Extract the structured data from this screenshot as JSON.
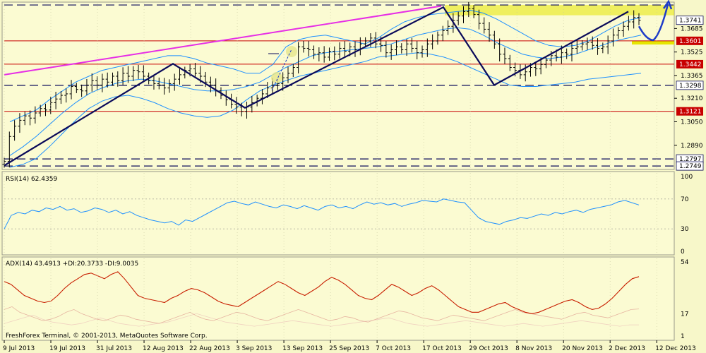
{
  "palette": {
    "background": "#ffffcc",
    "panel_bg": "#fbfbd2",
    "grid": "#c8c8a0",
    "price_bars": "#000000",
    "bollinger": "#1e90ff",
    "trendline_dark": "#0a0a5a",
    "trendline_magenta": "#e62ee6",
    "red_level": "#c80000",
    "yellow_zone": "#e6e600",
    "forecast_arrow": "#1e3cc8",
    "rsi_line": "#1e90ff",
    "adx_line": "#c81e00",
    "di_plus": "#e6b4a0",
    "di_minus": "#f0d2c0"
  },
  "chart_data": [
    {
      "type": "line",
      "panel": "price",
      "yaxis_ticks": [
        "1.3685",
        "1.3525",
        "1.3365",
        "1.3210",
        "1.3050",
        "1.2890"
      ],
      "ylim": [
        1.2735,
        1.3855
      ],
      "level_labels": [
        {
          "text": "1.3741",
          "value": 1.3741,
          "style": "current",
          "color": "#000000"
        },
        {
          "text": "1.3601",
          "value": 1.3601,
          "style": "resistance",
          "color": "#c80000"
        },
        {
          "text": "1.3442",
          "value": 1.3442,
          "style": "resistance",
          "color": "#c80000"
        },
        {
          "text": "1.3298",
          "value": 1.3298,
          "style": "dashed",
          "color": "#000000"
        },
        {
          "text": "1.3121",
          "value": 1.3121,
          "style": "resistance",
          "color": "#c80000"
        },
        {
          "text": "1.2797",
          "value": 1.2797,
          "style": "dashed",
          "color": "#000000"
        },
        {
          "text": "1.2749",
          "value": 1.2749,
          "style": "dashed",
          "color": "#000000"
        }
      ],
      "top_dashed_level": 1.3845,
      "closes": [
        1.278,
        1.295,
        1.302,
        1.306,
        1.309,
        1.3075,
        1.311,
        1.314,
        1.313,
        1.318,
        1.3205,
        1.323,
        1.324,
        1.329,
        1.327,
        1.326,
        1.33,
        1.333,
        1.33,
        1.334,
        1.332,
        1.336,
        1.333,
        1.338,
        1.336,
        1.34,
        1.339,
        1.336,
        1.333,
        1.331,
        1.33,
        1.328,
        1.331,
        1.334,
        1.337,
        1.34,
        1.341,
        1.338,
        1.336,
        1.332,
        1.33,
        1.326,
        1.323,
        1.32,
        1.317,
        1.315,
        1.312,
        1.315,
        1.318,
        1.321,
        1.324,
        1.328,
        1.33,
        1.331,
        1.335,
        1.338,
        1.342,
        1.356,
        1.355,
        1.354,
        1.351,
        1.352,
        1.349,
        1.353,
        1.351,
        1.355,
        1.353,
        1.356,
        1.354,
        1.358,
        1.36,
        1.362,
        1.358,
        1.357,
        1.352,
        1.354,
        1.356,
        1.354,
        1.358,
        1.355,
        1.352,
        1.354,
        1.358,
        1.36,
        1.364,
        1.367,
        1.37,
        1.374,
        1.377,
        1.38,
        1.382,
        1.378,
        1.372,
        1.368,
        1.364,
        1.358,
        1.351,
        1.348,
        1.342,
        1.34,
        1.337,
        1.339,
        1.342,
        1.341,
        1.344,
        1.347,
        1.35,
        1.349,
        1.352,
        1.351,
        1.355,
        1.356,
        1.358,
        1.359,
        1.357,
        1.355,
        1.356,
        1.36,
        1.364,
        1.367,
        1.37,
        1.373,
        1.376,
        1.3741
      ],
      "bb_upper": [
        1.305,
        1.309,
        1.313,
        1.32,
        1.326,
        1.332,
        1.336,
        1.34,
        1.342,
        1.344,
        1.346,
        1.348,
        1.35,
        1.35,
        1.348,
        1.345,
        1.343,
        1.341,
        1.338,
        1.338,
        1.344,
        1.356,
        1.361,
        1.363,
        1.364,
        1.362,
        1.36,
        1.358,
        1.362,
        1.368,
        1.373,
        1.376,
        1.378,
        1.379,
        1.38,
        1.381,
        1.379,
        1.375,
        1.37,
        1.365,
        1.36,
        1.357,
        1.356,
        1.357,
        1.36,
        1.365,
        1.37,
        1.374,
        1.376
      ],
      "bb_middle": [
        1.282,
        1.288,
        1.295,
        1.303,
        1.311,
        1.318,
        1.324,
        1.328,
        1.331,
        1.333,
        1.334,
        1.333,
        1.331,
        1.329,
        1.327,
        1.326,
        1.326,
        1.327,
        1.329,
        1.332,
        1.337,
        1.342,
        1.346,
        1.35,
        1.352,
        1.353,
        1.354,
        1.355,
        1.356,
        1.358,
        1.361,
        1.364,
        1.366,
        1.368,
        1.369,
        1.368,
        1.364,
        1.359,
        1.355,
        1.351,
        1.349,
        1.348,
        1.349,
        1.351,
        1.354,
        1.357,
        1.36,
        1.362,
        1.364
      ],
      "bb_lower": [
        1.274,
        1.276,
        1.28,
        1.288,
        1.297,
        1.306,
        1.314,
        1.319,
        1.322,
        1.323,
        1.321,
        1.318,
        1.314,
        1.311,
        1.309,
        1.308,
        1.309,
        1.313,
        1.32,
        1.326,
        1.33,
        1.333,
        1.336,
        1.338,
        1.34,
        1.342,
        1.344,
        1.346,
        1.349,
        1.35,
        1.351,
        1.352,
        1.351,
        1.349,
        1.346,
        1.342,
        1.338,
        1.334,
        1.33,
        1.329,
        1.329,
        1.33,
        1.331,
        1.332,
        1.334,
        1.335,
        1.336,
        1.337,
        1.338
      ]
    },
    {
      "type": "line",
      "panel": "rsi",
      "title": "RSI(14) 62.4359",
      "ylim": [
        0,
        100
      ],
      "yaxis_ticks": [
        "100",
        "70",
        "30",
        "0"
      ],
      "levels": [
        70,
        30
      ],
      "values": [
        30,
        48,
        52,
        50,
        55,
        53,
        58,
        56,
        60,
        55,
        57,
        52,
        54,
        58,
        56,
        52,
        55,
        50,
        53,
        48,
        45,
        42,
        40,
        38,
        40,
        35,
        42,
        40,
        45,
        50,
        55,
        60,
        65,
        67,
        64,
        62,
        66,
        63,
        60,
        58,
        62,
        60,
        57,
        61,
        58,
        55,
        60,
        62,
        58,
        60,
        57,
        62,
        66,
        63,
        65,
        62,
        64,
        60,
        63,
        65,
        68,
        67,
        66,
        70,
        68,
        66,
        65,
        55,
        45,
        40,
        38,
        36,
        40,
        42,
        45,
        44,
        47,
        50,
        48,
        52,
        50,
        53,
        55,
        52,
        56,
        58,
        60,
        62,
        66,
        68,
        65,
        62
      ]
    },
    {
      "type": "line",
      "panel": "adx",
      "title": "ADX(14) 43.4913 +DI:20.3733 -DI:9.0035",
      "ylim": [
        1,
        54
      ],
      "yaxis_ticks": [
        "54",
        "17",
        "1"
      ],
      "series": [
        {
          "name": "ADX",
          "values": [
            40,
            38,
            34,
            30,
            28,
            26,
            25,
            26,
            30,
            35,
            39,
            42,
            45,
            46,
            44,
            42,
            45,
            47,
            42,
            36,
            30,
            28,
            27,
            26,
            25,
            28,
            30,
            33,
            35,
            34,
            32,
            29,
            26,
            24,
            23,
            22,
            25,
            28,
            31,
            34,
            37,
            40,
            38,
            35,
            32,
            30,
            33,
            36,
            40,
            43,
            41,
            38,
            34,
            30,
            28,
            27,
            30,
            34,
            38,
            36,
            33,
            30,
            32,
            35,
            37,
            34,
            30,
            26,
            22,
            20,
            18,
            18,
            20,
            22,
            24,
            25,
            22,
            20,
            18,
            17,
            18,
            20,
            22,
            24,
            26,
            27,
            25,
            22,
            20,
            21,
            24,
            28,
            33,
            38,
            42,
            43.49
          ]
        },
        {
          "name": "+DI",
          "values": [
            20,
            22,
            18,
            16,
            14,
            12,
            13,
            15,
            18,
            20,
            17,
            15,
            13,
            12,
            14,
            16,
            15,
            13,
            12,
            11,
            10,
            12,
            14,
            16,
            18,
            15,
            13,
            12,
            14,
            16,
            18,
            17,
            15,
            13,
            12,
            14,
            16,
            18,
            20,
            18,
            16,
            14,
            12,
            13,
            15,
            14,
            12,
            11,
            13,
            15,
            17,
            19,
            18,
            16,
            14,
            13,
            12,
            14,
            16,
            15,
            14,
            13,
            12,
            14,
            16,
            18,
            20,
            18,
            17,
            16,
            15,
            14,
            13,
            15,
            17,
            18,
            16,
            15,
            14,
            16,
            18,
            20,
            20.37
          ]
        },
        {
          "name": "-DI",
          "values": [
            10,
            12,
            14,
            16,
            13,
            11,
            10,
            9,
            10,
            12,
            14,
            12,
            10,
            9,
            8,
            9,
            10,
            11,
            13,
            15,
            17,
            15,
            13,
            11,
            10,
            9,
            8,
            9,
            10,
            11,
            12,
            11,
            10,
            9,
            8,
            9,
            10,
            11,
            12,
            13,
            14,
            12,
            10,
            9,
            8,
            9,
            10,
            11,
            12,
            11,
            10,
            9,
            8,
            9,
            10,
            9,
            8,
            9,
            10,
            11,
            12,
            11,
            10,
            9,
            8,
            9,
            9.0
          ]
        }
      ]
    }
  ],
  "x_axis_dates": [
    "9 Jul 2013",
    "19 Jul 2013",
    "31 Jul 2013",
    "12 Aug 2013",
    "22 Aug 2013",
    "3 Sep 2013",
    "13 Sep 2013",
    "25 Sep 2013",
    "7 Oct 2013",
    "17 Oct 2013",
    "29 Oct 2013",
    "8 Nov 2013",
    "20 Nov 2013",
    "2 Dec 2013",
    "12 Dec 2013"
  ],
  "footer": {
    "copyright": "FreshForex Terminal, © 2001-2013, MetaQuotes Software Corp."
  }
}
